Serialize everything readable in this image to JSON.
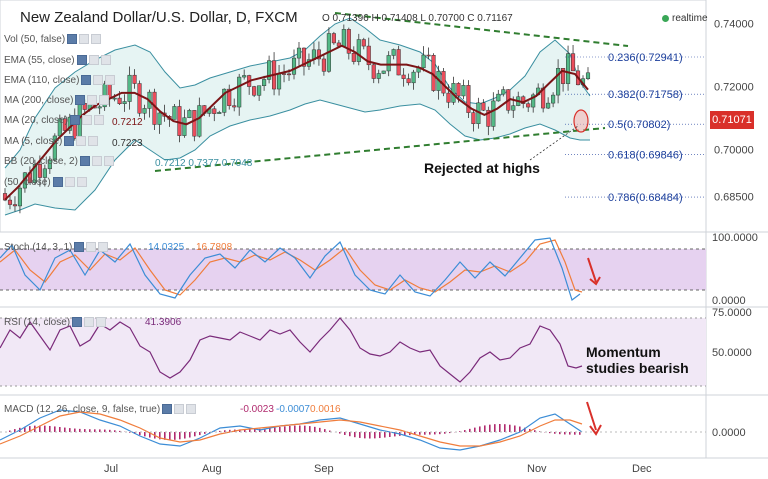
{
  "header": {
    "title": "New Zealand Dollar/U.S. Dollar, D, FXCM",
    "ohlc": "O 0.71396 H 0.71408 L 0.70700 C 0.71167",
    "realtime": "realtime",
    "current_price": "0.71071"
  },
  "indicators": {
    "vol": "Vol (50, false)",
    "ema55": "EMA (55, close)",
    "ema110": "EMA (110, close)",
    "ma200": "MA (200, close)",
    "ma20": "MA (20, close)",
    "ma5": "MA (5, close)",
    "bb": "BB (20, close, 2)",
    "extra": "(50, close)",
    "ma20_val": "0.7212",
    "ma5_val": "0.7223",
    "bb_vals": "0.7212  0.7377  0.7048",
    "ma200_val": "0.7212"
  },
  "stoch": {
    "label": "Stoch (14, 3, 1)",
    "k": "14.0325",
    "d": "16.7808",
    "axis": [
      "100.0000",
      "0.0000"
    ]
  },
  "rsi": {
    "label": "RSI (14, close)",
    "value": "41.3906",
    "axis": [
      "75.0000",
      "50.0000"
    ]
  },
  "macd": {
    "label": "MACD (12, 26, close, 9, false, true)",
    "hist": "-0.0023",
    "macd": "-0.0007",
    "signal": "0.0016",
    "axis": [
      "0.0000"
    ]
  },
  "annotations": {
    "rejected": "Rejected at highs",
    "momentum1": "Momentum",
    "momentum2": "studies bearish"
  },
  "colors": {
    "up": "#53b987",
    "down": "#eb4d5c",
    "ma": "#7b1416",
    "bb": "#3a8fa0",
    "trend": "#2f7d2f",
    "stoch_k": "#3c8dd6",
    "stoch_d": "#f07d3c",
    "rsi": "#7a2a7a",
    "macd": "#3c8dd6",
    "signal": "#f07d3c",
    "hist": "#b02a6e",
    "fib": "#1c3f9c"
  },
  "chart_data": {
    "type": "candlestick",
    "ylim": [
      0.675,
      0.745
    ],
    "price_ticks": [
      "0.74000",
      "0.72000",
      "0.70000",
      "0.68500"
    ],
    "price_tick_values": [
      0.74,
      0.72,
      0.7,
      0.685
    ],
    "x_labels": [
      "Jul",
      "Aug",
      "Sep",
      "Oct",
      "Nov",
      "Dec"
    ],
    "fib_levels": [
      {
        "label": "0.236(0.72941)",
        "value": 0.72941
      },
      {
        "label": "0.382(0.71758)",
        "value": 0.71758
      },
      {
        "label": "0.5(0.70802)",
        "value": 0.70802
      },
      {
        "label": "0.618(0.69846)",
        "value": 0.69846
      },
      {
        "label": "0.786(0.68484)",
        "value": 0.68484
      }
    ],
    "ma_series": [
      0.684,
      0.688,
      0.693,
      0.698,
      0.703,
      0.707,
      0.711,
      0.714,
      0.716,
      0.718,
      0.718,
      0.716,
      0.712,
      0.709,
      0.708,
      0.71,
      0.714,
      0.718,
      0.72,
      0.722,
      0.723,
      0.724,
      0.725,
      0.727,
      0.729,
      0.731,
      0.733,
      0.731,
      0.728,
      0.727,
      0.727,
      0.727,
      0.726,
      0.724,
      0.72,
      0.716,
      0.713,
      0.711,
      0.713,
      0.716,
      0.715,
      0.717,
      0.721,
      0.725,
      0.724,
      0.719
    ]
  }
}
